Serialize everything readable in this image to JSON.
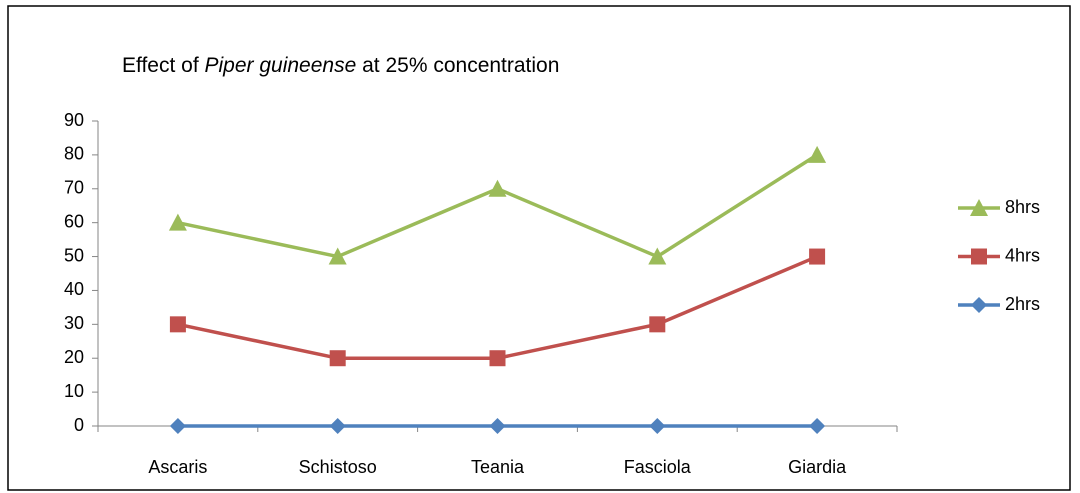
{
  "chart_data": {
    "type": "line",
    "title": [
      "Effect of ",
      "Piper guineense",
      " at 25% concentration"
    ],
    "categories": [
      "Ascaris",
      "Schistoso",
      "Teania",
      "Fasciola",
      "Giardia"
    ],
    "series": [
      {
        "name": "8hrs",
        "color": "#9bbb59",
        "marker": "triangle",
        "values": [
          60,
          50,
          70,
          50,
          80
        ]
      },
      {
        "name": "4hrs",
        "color": "#c0504d",
        "marker": "square",
        "values": [
          30,
          20,
          20,
          30,
          50
        ]
      },
      {
        "name": "2hrs",
        "color": "#4f81bd",
        "marker": "diamond",
        "values": [
          0,
          0,
          0,
          0,
          0
        ]
      }
    ],
    "ylim": [
      0,
      90
    ],
    "yticks": [
      0,
      10,
      20,
      30,
      40,
      50,
      60,
      70,
      80,
      90
    ],
    "legend": "right"
  }
}
